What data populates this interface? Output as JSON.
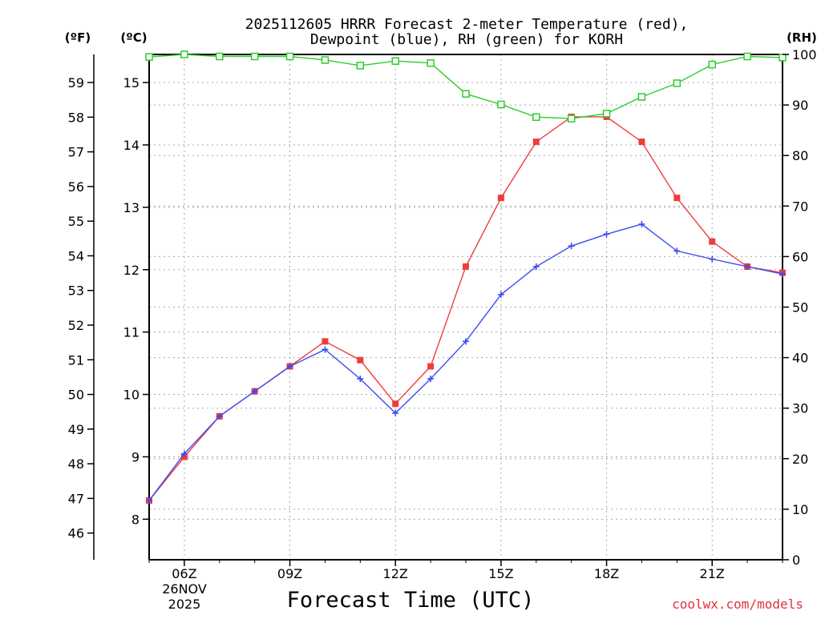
{
  "chart_data": {
    "type": "line",
    "title": "2025112605 HRRR Forecast 2-meter Temperature (red),",
    "title_line2": "Dewpoint (blue), RH (green) for KORH",
    "xlabel": "Forecast Time (UTC)",
    "y_left_outer_label": "(ºF)",
    "y_left_inner_label": "(ºC)",
    "y_right_label": "(RH)",
    "x": [
      5,
      6,
      7,
      8,
      9,
      10,
      11,
      12,
      13,
      14,
      15,
      16,
      17,
      18,
      19,
      20,
      21,
      22,
      23
    ],
    "xlim": [
      5,
      23
    ],
    "x_tick_labels": [
      {
        "x": 6,
        "label": "06Z"
      },
      {
        "x": 9,
        "label": "09Z"
      },
      {
        "x": 12,
        "label": "12Z"
      },
      {
        "x": 15,
        "label": "15Z"
      },
      {
        "x": 18,
        "label": "18Z"
      },
      {
        "x": 21,
        "label": "21Z"
      }
    ],
    "date_label_line1": "26NOV",
    "date_label_line2": "2025",
    "y_celsius": {
      "min": 7.35,
      "max": 15.45,
      "ticks": [
        8,
        9,
        10,
        11,
        12,
        13,
        14,
        15
      ]
    },
    "y_fahrenheit_ticks": [
      46,
      47,
      48,
      49,
      50,
      51,
      52,
      53,
      54,
      55,
      56,
      57,
      58,
      59
    ],
    "y_rh": {
      "min": 0,
      "max": 100,
      "ticks": [
        0,
        10,
        20,
        30,
        40,
        50,
        60,
        70,
        80,
        90,
        100
      ]
    },
    "series": [
      {
        "name": "Temperature",
        "unit": "C",
        "color": "#f03c3c",
        "marker": "filled-square",
        "values": [
          8.3,
          9.0,
          9.65,
          10.05,
          10.45,
          10.85,
          10.55,
          9.85,
          10.45,
          12.05,
          13.15,
          14.05,
          14.45,
          14.45,
          14.05,
          13.15,
          12.45,
          12.05,
          11.95
        ]
      },
      {
        "name": "Dewpoint",
        "unit": "C",
        "color": "#3c4cf0",
        "marker": "plus",
        "values": [
          8.3,
          9.05,
          9.65,
          10.05,
          10.45,
          10.72,
          10.25,
          9.7,
          10.25,
          10.85,
          11.6,
          12.05,
          12.38,
          12.57,
          12.73,
          12.3,
          12.17,
          12.05,
          11.93
        ]
      },
      {
        "name": "RH",
        "unit": "%",
        "color": "#2ccd2c",
        "marker": "open-square",
        "values": [
          99.5,
          100,
          99.6,
          99.6,
          99.6,
          98.9,
          97.8,
          98.7,
          98.3,
          92.2,
          90.1,
          87.6,
          87.3,
          88.3,
          91.6,
          94.3,
          98.0,
          99.6,
          99.4
        ]
      }
    ]
  },
  "credit": "coolwx.com/models"
}
